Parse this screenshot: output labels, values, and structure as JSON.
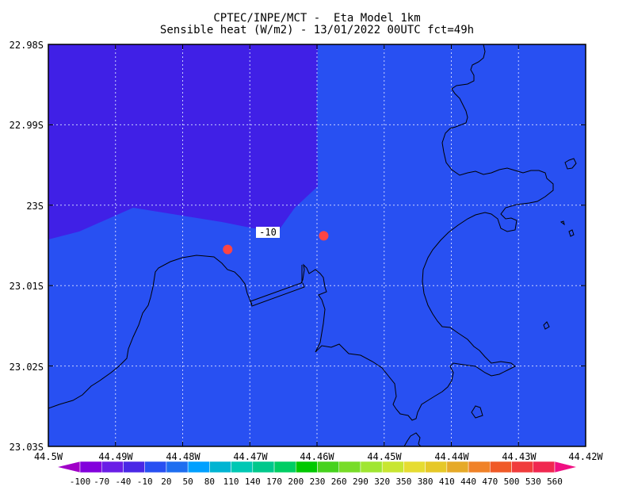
{
  "header": {
    "line1": "CPTEC/INPE/MCT -  Eta Model 1km",
    "line2": "Sensible heat (W/m2) - 13/01/2022 00UTC fct=49h"
  },
  "map": {
    "y_axis_labels": [
      "22.98S",
      "22.99S",
      "23S",
      "23.01S",
      "23.02S",
      "23.03S"
    ],
    "x_axis_labels": [
      "44.5W",
      "44.49W",
      "44.48W",
      "44.47W",
      "44.46W",
      "44.45W",
      "44.44W",
      "44.43W",
      "44.42W"
    ],
    "lat_range": [
      -23.03,
      -22.98
    ],
    "lon_range": [
      -44.5,
      -44.42
    ],
    "contour_label": "-10",
    "field_colors": {
      "region_low": "#4020e6",
      "region_high": "#2850f2"
    },
    "marker_color": "#ff4444",
    "station_markers": [
      {
        "lon": -44.4733,
        "lat": -23.0055
      },
      {
        "lon": -44.459,
        "lat": -23.0038
      }
    ]
  },
  "colorbar": {
    "labels": [
      "-100",
      "-70",
      "-40",
      "-10",
      "20",
      "50",
      "80",
      "110",
      "140",
      "170",
      "200",
      "230",
      "260",
      "290",
      "320",
      "350",
      "380",
      "410",
      "440",
      "470",
      "500",
      "530",
      "560"
    ],
    "colors": [
      "#a000c8",
      "#8200dc",
      "#6a1ee6",
      "#4a28e6",
      "#2850f2",
      "#1e6ef0",
      "#00a0ff",
      "#00b4d2",
      "#00c8b4",
      "#00c88c",
      "#00cd64",
      "#00c800",
      "#46d21e",
      "#78dc28",
      "#a0e632",
      "#c8e632",
      "#e6dc32",
      "#e6c828",
      "#e6aa28",
      "#f08228",
      "#f05a28",
      "#f03c3c",
      "#f02850",
      "#f01e78",
      "#f00f82"
    ]
  }
}
